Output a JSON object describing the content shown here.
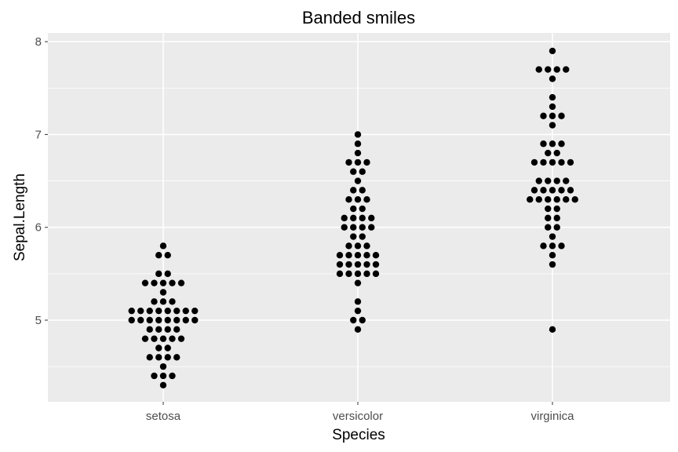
{
  "chart_data": {
    "type": "scatter",
    "title": "Banded smiles",
    "xlabel": "Species",
    "ylabel": "Sepal.Length",
    "categories": [
      "setosa",
      "versicolor",
      "virginica"
    ],
    "ylim": [
      4.3,
      8.0
    ],
    "yticks": [
      5,
      6,
      7,
      8
    ],
    "grid": true,
    "legend": "none",
    "colors": {
      "panel_background": "#ebebeb",
      "gridline": "#ffffff",
      "point": "#000000",
      "tick_label": "#4d4d4d"
    },
    "series": [
      {
        "category": "setosa",
        "values": [
          5.1,
          4.9,
          4.7,
          4.6,
          5.0,
          5.4,
          4.6,
          5.0,
          4.4,
          4.9,
          5.4,
          4.8,
          4.8,
          4.3,
          5.8,
          5.7,
          5.4,
          5.1,
          5.7,
          5.1,
          5.4,
          5.1,
          4.6,
          5.1,
          4.8,
          5.0,
          5.0,
          5.2,
          5.2,
          4.7,
          4.8,
          5.4,
          5.2,
          5.5,
          4.9,
          5.0,
          5.5,
          4.9,
          4.4,
          5.1,
          5.0,
          4.5,
          4.4,
          5.0,
          5.1,
          4.8,
          5.1,
          4.6,
          5.3,
          5.0
        ]
      },
      {
        "category": "versicolor",
        "values": [
          7.0,
          6.4,
          6.9,
          5.5,
          6.5,
          5.7,
          6.3,
          4.9,
          6.6,
          5.2,
          5.0,
          5.9,
          6.0,
          6.1,
          5.6,
          6.7,
          5.6,
          5.8,
          6.2,
          5.6,
          5.9,
          6.1,
          6.3,
          6.1,
          6.4,
          6.6,
          6.8,
          6.7,
          6.0,
          5.7,
          5.5,
          5.5,
          5.8,
          6.0,
          5.4,
          6.0,
          6.7,
          6.3,
          5.6,
          5.5,
          5.5,
          6.1,
          5.8,
          5.0,
          5.6,
          5.7,
          5.7,
          6.2,
          5.1,
          5.7
        ]
      },
      {
        "category": "virginica",
        "values": [
          6.3,
          5.8,
          7.1,
          6.3,
          6.5,
          7.6,
          4.9,
          7.3,
          6.7,
          7.2,
          6.5,
          6.4,
          6.8,
          5.7,
          5.8,
          6.4,
          6.5,
          7.7,
          7.7,
          6.0,
          6.9,
          5.6,
          7.7,
          6.3,
          6.7,
          7.2,
          6.2,
          6.1,
          6.4,
          7.2,
          7.4,
          7.9,
          6.4,
          6.3,
          6.1,
          7.7,
          6.3,
          6.4,
          6.0,
          6.9,
          6.7,
          6.9,
          5.8,
          6.8,
          6.7,
          6.7,
          6.3,
          6.5,
          6.2,
          5.9
        ]
      }
    ]
  }
}
